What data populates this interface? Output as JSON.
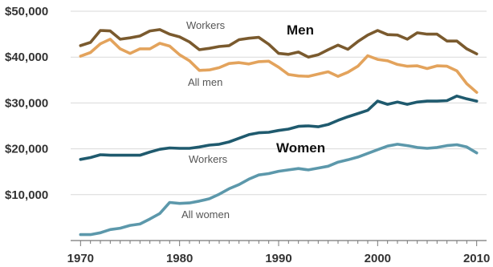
{
  "chart_data": {
    "type": "line",
    "title": "",
    "xlabel": "",
    "ylabel": "",
    "xlim": [
      1969,
      2011
    ],
    "ylim": [
      0,
      50000
    ],
    "grid": true,
    "x_ticks": [
      1970,
      1980,
      1990,
      2000,
      2010
    ],
    "y_ticks": [
      {
        "value": 10000,
        "label": "$10,000"
      },
      {
        "value": 20000,
        "label": "$20,000"
      },
      {
        "value": 30000,
        "label": "$30,000"
      },
      {
        "value": 40000,
        "label": "$40,000"
      },
      {
        "value": 50000,
        "label": "$50,000"
      }
    ],
    "group_labels": {
      "men": "Men",
      "women": "Women"
    },
    "x": [
      1970,
      1971,
      1972,
      1973,
      1974,
      1975,
      1976,
      1977,
      1978,
      1979,
      1980,
      1981,
      1982,
      1983,
      1984,
      1985,
      1986,
      1987,
      1988,
      1989,
      1990,
      1991,
      1992,
      1993,
      1994,
      1995,
      1996,
      1997,
      1998,
      1999,
      2000,
      2001,
      2002,
      2003,
      2004,
      2005,
      2006,
      2007,
      2008,
      2009,
      2010
    ],
    "series": [
      {
        "name": "Workers",
        "group": "Men",
        "color": "#7a5a2e",
        "values": [
          42500,
          43200,
          45800,
          45700,
          43900,
          44200,
          44600,
          45700,
          46000,
          45000,
          44400,
          43300,
          41600,
          41900,
          42300,
          42500,
          43800,
          44100,
          44300,
          42800,
          40800,
          40600,
          41100,
          40000,
          40500,
          41600,
          42600,
          41700,
          43400,
          44800,
          45800,
          44900,
          44800,
          43900,
          45300,
          45000,
          45000,
          43500,
          43500,
          41800,
          40700
        ]
      },
      {
        "name": "All men",
        "group": "Men",
        "color": "#e3a35c",
        "values": [
          40200,
          41000,
          42900,
          43900,
          41800,
          40800,
          41800,
          41800,
          43000,
          42400,
          40500,
          39200,
          37100,
          37200,
          37700,
          38600,
          38800,
          38500,
          39000,
          39100,
          37800,
          36200,
          35900,
          35800,
          36300,
          36800,
          35800,
          36700,
          38000,
          40300,
          39500,
          39200,
          38400,
          38000,
          38100,
          37500,
          38100,
          38000,
          37000,
          34200,
          32300
        ]
      },
      {
        "name": "Workers",
        "group": "Women",
        "color": "#1f5a6e",
        "values": [
          17700,
          18100,
          18700,
          18600,
          18600,
          18600,
          18600,
          19300,
          19900,
          20200,
          20100,
          20100,
          20400,
          20800,
          21000,
          21500,
          22300,
          23100,
          23500,
          23600,
          24000,
          24300,
          24900,
          25000,
          24800,
          25300,
          26200,
          27000,
          27700,
          28400,
          30400,
          29700,
          30200,
          29700,
          30200,
          30400,
          30400,
          30500,
          31500,
          30900,
          30400
        ]
      },
      {
        "name": "All women",
        "group": "Women",
        "color": "#5c98ab",
        "values": [
          1300,
          1300,
          1700,
          2400,
          2700,
          3300,
          3600,
          4700,
          5900,
          8300,
          8100,
          8200,
          8600,
          9100,
          10100,
          11300,
          12200,
          13400,
          14300,
          14600,
          15100,
          15400,
          15700,
          15400,
          15800,
          16200,
          17100,
          17600,
          18200,
          19000,
          19800,
          20600,
          21000,
          20700,
          20300,
          20100,
          20300,
          20700,
          20900,
          20400,
          19100
        ]
      }
    ],
    "annotations": [
      {
        "series": 0,
        "text": "Workers"
      },
      {
        "series": 1,
        "text": "All men"
      },
      {
        "series": 2,
        "text": "Workers"
      },
      {
        "series": 3,
        "text": "All women"
      }
    ]
  }
}
